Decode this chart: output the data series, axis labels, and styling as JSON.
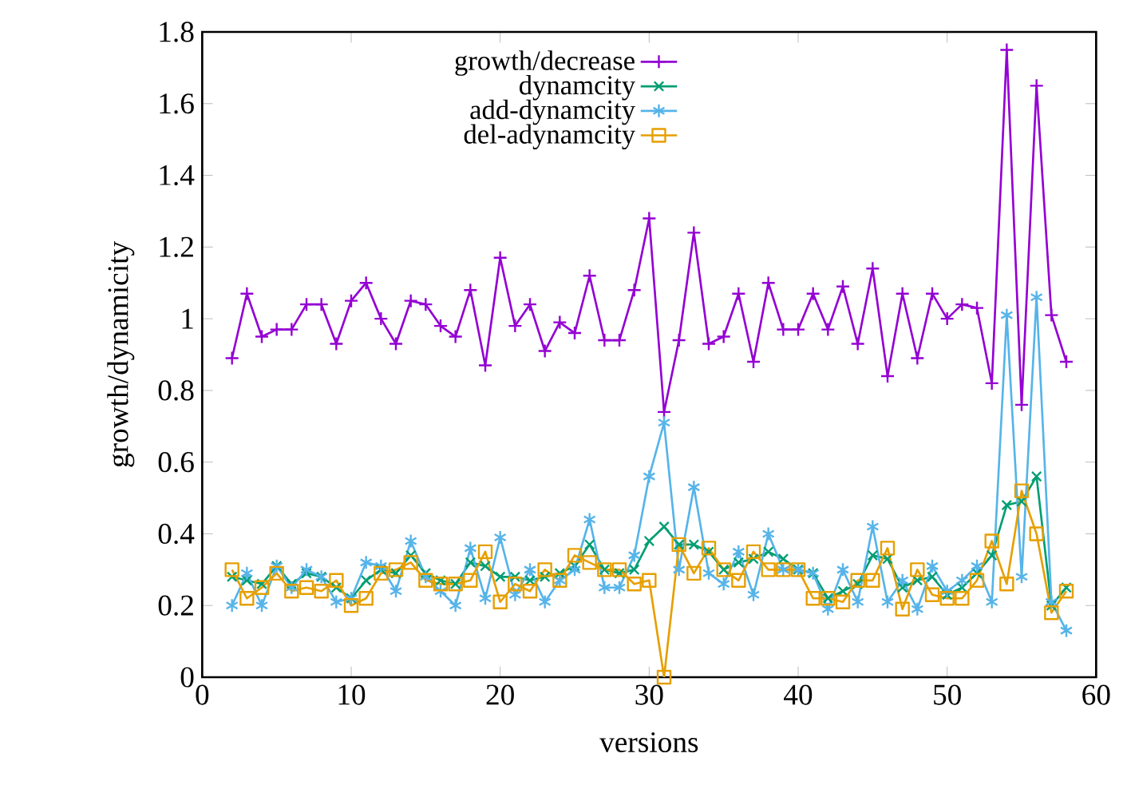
{
  "chart_data": {
    "type": "line",
    "xlabel": "versions",
    "ylabel": "growth/dynamicity",
    "x": [
      2,
      3,
      4,
      5,
      6,
      7,
      8,
      9,
      10,
      11,
      12,
      13,
      14,
      15,
      16,
      17,
      18,
      19,
      20,
      21,
      22,
      23,
      24,
      25,
      26,
      27,
      28,
      29,
      30,
      31,
      32,
      33,
      34,
      35,
      36,
      37,
      38,
      39,
      40,
      41,
      42,
      43,
      44,
      45,
      46,
      47,
      48,
      49,
      50,
      51,
      52,
      53,
      54,
      55,
      56,
      57,
      58
    ],
    "series": [
      {
        "name": "growth/decrease",
        "color": "#9400d3",
        "marker": "plus",
        "values": [
          0.89,
          1.07,
          0.95,
          0.97,
          0.97,
          1.04,
          1.04,
          0.93,
          1.05,
          1.1,
          1.0,
          0.93,
          1.05,
          1.04,
          0.98,
          0.95,
          1.08,
          0.87,
          1.17,
          0.98,
          1.04,
          0.91,
          0.99,
          0.96,
          1.12,
          0.94,
          0.94,
          1.08,
          1.28,
          0.74,
          0.94,
          1.24,
          0.93,
          0.95,
          1.07,
          0.88,
          1.1,
          0.97,
          0.97,
          1.07,
          0.97,
          1.09,
          0.93,
          1.14,
          0.84,
          1.07,
          0.89,
          1.07,
          1.0,
          1.04,
          1.03,
          0.82,
          1.75,
          0.76,
          1.65,
          1.01,
          0.88
        ]
      },
      {
        "name": "dynamcity",
        "color": "#009e73",
        "marker": "cross",
        "values": [
          0.28,
          0.27,
          0.26,
          0.31,
          0.26,
          0.29,
          0.28,
          0.25,
          0.22,
          0.27,
          0.3,
          0.29,
          0.34,
          0.29,
          0.27,
          0.26,
          0.32,
          0.31,
          0.28,
          0.28,
          0.27,
          0.28,
          0.29,
          0.31,
          0.37,
          0.3,
          0.29,
          0.3,
          0.38,
          0.42,
          0.37,
          0.37,
          0.35,
          0.3,
          0.32,
          0.33,
          0.35,
          0.33,
          0.3,
          0.29,
          0.22,
          0.24,
          0.26,
          0.34,
          0.33,
          0.25,
          0.27,
          0.28,
          0.23,
          0.25,
          0.29,
          0.34,
          0.48,
          0.49,
          0.56,
          0.2,
          0.25
        ]
      },
      {
        "name": "add-dynamcity",
        "color": "#56b4e9",
        "marker": "cross",
        "values": [
          0.2,
          0.29,
          0.2,
          0.31,
          0.25,
          0.3,
          0.28,
          0.21,
          0.22,
          0.32,
          0.31,
          0.24,
          0.38,
          0.28,
          0.24,
          0.2,
          0.36,
          0.22,
          0.39,
          0.23,
          0.3,
          0.21,
          0.27,
          0.3,
          0.44,
          0.25,
          0.25,
          0.34,
          0.56,
          0.71,
          0.3,
          0.53,
          0.29,
          0.26,
          0.35,
          0.23,
          0.4,
          0.3,
          0.3,
          0.29,
          0.19,
          0.3,
          0.21,
          0.42,
          0.21,
          0.27,
          0.19,
          0.31,
          0.24,
          0.27,
          0.31,
          0.21,
          1.01,
          0.28,
          1.06,
          0.21,
          0.13
        ]
      },
      {
        "name": "del-adynamcity",
        "color": "#e69f00",
        "marker": "square",
        "values": [
          0.3,
          0.22,
          0.25,
          0.29,
          0.24,
          0.25,
          0.24,
          0.27,
          0.2,
          0.22,
          0.29,
          0.3,
          0.32,
          0.27,
          0.26,
          0.26,
          0.27,
          0.35,
          0.21,
          0.26,
          0.24,
          0.3,
          0.27,
          0.34,
          0.32,
          0.3,
          0.3,
          0.26,
          0.27,
          0.0,
          0.37,
          0.29,
          0.36,
          0.3,
          0.27,
          0.35,
          0.3,
          0.3,
          0.3,
          0.22,
          0.22,
          0.21,
          0.27,
          0.27,
          0.36,
          0.19,
          0.3,
          0.23,
          0.22,
          0.22,
          0.27,
          0.38,
          0.26,
          0.52,
          0.4,
          0.18,
          0.24
        ]
      }
    ],
    "xlim": [
      0,
      60
    ],
    "xticks": [
      0,
      10,
      20,
      30,
      40,
      50,
      60
    ],
    "ylim": [
      0,
      1.8
    ],
    "yticks": [
      0,
      {
        "value": 0.2,
        "label": "0.2"
      },
      {
        "value": 0.4,
        "label": "0.4"
      },
      {
        "value": 0.6,
        "label": "0.6"
      },
      {
        "value": 0.8,
        "label": "0.8"
      },
      1,
      {
        "value": 1.2,
        "label": "1.2"
      },
      {
        "value": 1.4,
        "label": "1.4"
      },
      {
        "value": 1.6,
        "label": "1.6"
      },
      {
        "value": 1.8,
        "label": "1.8"
      }
    ],
    "legend": "top",
    "grid": false
  }
}
